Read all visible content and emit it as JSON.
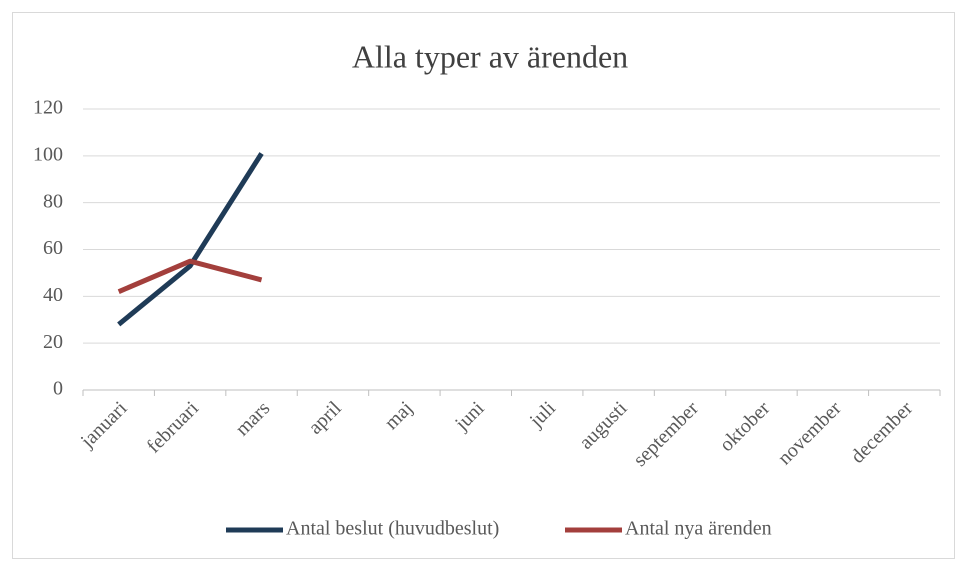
{
  "chart_data": {
    "type": "line",
    "title": "Alla typer av ärenden",
    "categories": [
      "januari",
      "februari",
      "mars",
      "april",
      "maj",
      "juni",
      "juli",
      "augusti",
      "september",
      "oktober",
      "november",
      "december"
    ],
    "series": [
      {
        "name": "Antal beslut (huvudbeslut)",
        "color": "#1f3b57",
        "values": [
          28,
          53,
          101,
          null,
          null,
          null,
          null,
          null,
          null,
          null,
          null,
          null
        ]
      },
      {
        "name": "Antal nya ärenden",
        "color": "#a33f3c",
        "values": [
          42,
          55,
          47,
          null,
          null,
          null,
          null,
          null,
          null,
          null,
          null,
          null
        ]
      }
    ],
    "ylim": [
      0,
      120
    ],
    "yticks": [
      0,
      20,
      40,
      60,
      80,
      100,
      120
    ],
    "grid": true,
    "legend": "bottom"
  }
}
